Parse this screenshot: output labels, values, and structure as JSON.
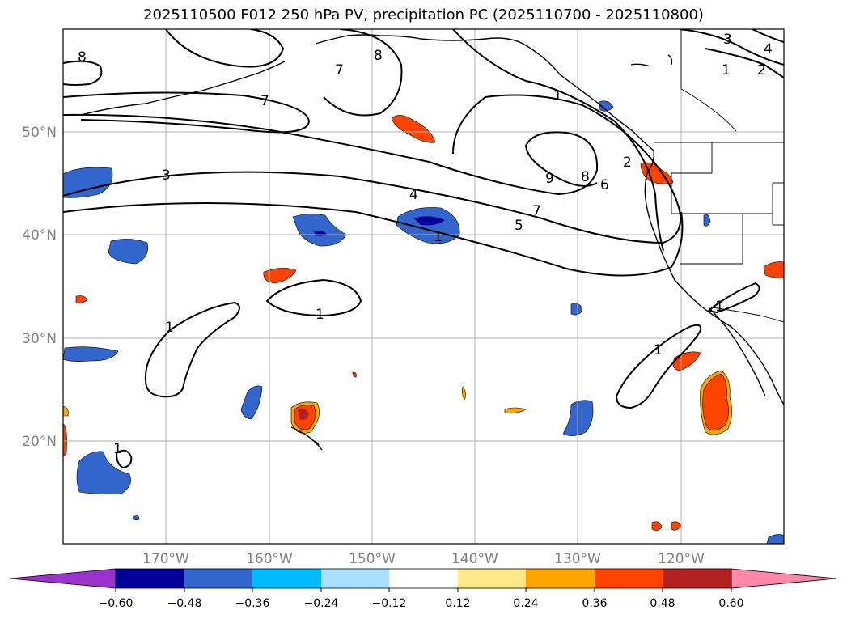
{
  "title": "2025110500 F012 250 hPa PV, precipitation PC (2025110700 - 2025110800)",
  "map": {
    "lat_labels": [
      "50°N",
      "40°N",
      "30°N",
      "20°N"
    ],
    "lon_labels": [
      "170°W",
      "160°W",
      "150°W",
      "140°W",
      "130°W",
      "120°W"
    ],
    "contour_labels": [
      "8",
      "7",
      "8",
      "7",
      "3",
      "4",
      "5",
      "7",
      "9",
      "8",
      "6",
      "2",
      "1",
      "1",
      "1",
      "1",
      "1",
      "1",
      "1",
      "1",
      "3",
      "4",
      "2"
    ]
  },
  "colorbar": {
    "tick_labels": [
      "−0.60",
      "−0.48",
      "−0.36",
      "−0.24",
      "−0.12",
      "0.12",
      "0.24",
      "0.36",
      "0.48",
      "0.60"
    ],
    "colors": [
      "#9933cc",
      "#000099",
      "#3366cc",
      "#00bbff",
      "#aae0ff",
      "#ffffff",
      "#ffe888",
      "#ffa500",
      "#ff4400",
      "#b22222",
      "#ff88aa",
      "#ff88aa"
    ]
  }
}
